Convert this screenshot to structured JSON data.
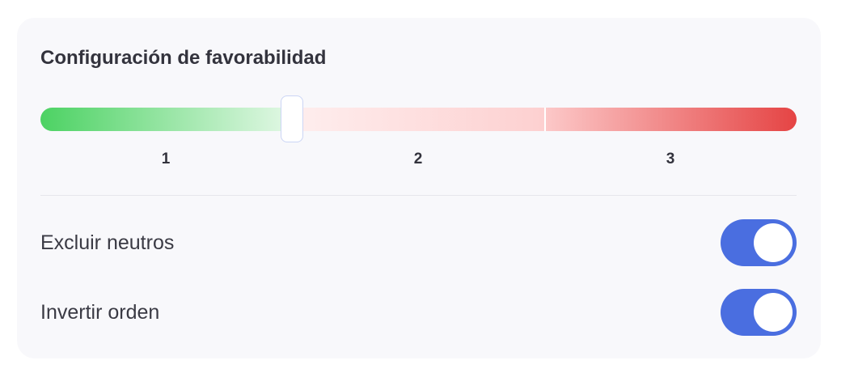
{
  "card": {
    "title": "Configuración de favorabilidad",
    "slider": {
      "labels": [
        "1",
        "2",
        "3"
      ],
      "value": 1.5,
      "colors": {
        "positive": "#4cd263",
        "negative": "#e54444"
      }
    },
    "options": [
      {
        "label": "Excluir neutros",
        "enabled": true
      },
      {
        "label": "Invertir orden",
        "enabled": true
      }
    ],
    "accent": "#4a6ee0"
  }
}
